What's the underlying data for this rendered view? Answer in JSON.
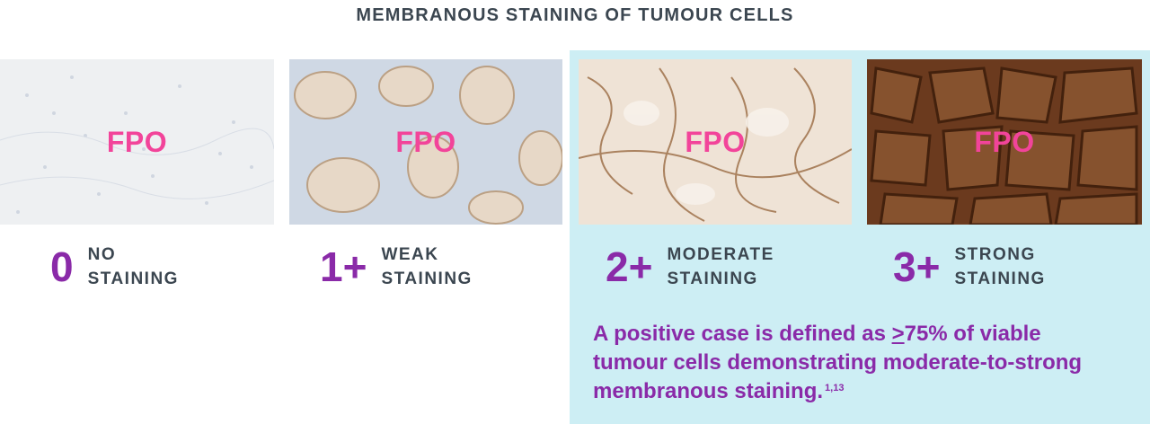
{
  "title": "MEMBRANOUS STAINING OF TUMOUR CELLS",
  "panels": [
    {
      "placeholder": "FPO",
      "score": "0",
      "line1": "NO",
      "line2": "STAINING"
    },
    {
      "placeholder": "FPO",
      "score": "1+",
      "line1": "WEAK",
      "line2": "STAINING"
    },
    {
      "placeholder": "FPO",
      "score": "2+",
      "line1": "MODERATE",
      "line2": "STAINING"
    },
    {
      "placeholder": "FPO",
      "score": "3+",
      "line1": "STRONG",
      "line2": "STAINING"
    }
  ],
  "note": {
    "text_before": "A positive case is defined as ",
    "ge_symbol": ">",
    "text_after": "75% of viable tumour cells demonstrating moderate-to-strong membranous staining.",
    "reference": "1,13"
  },
  "colors": {
    "title": "#3b4650",
    "score": "#8a2aa8",
    "fpo": "#f2449a",
    "highlight_box": "#cdeef4"
  }
}
